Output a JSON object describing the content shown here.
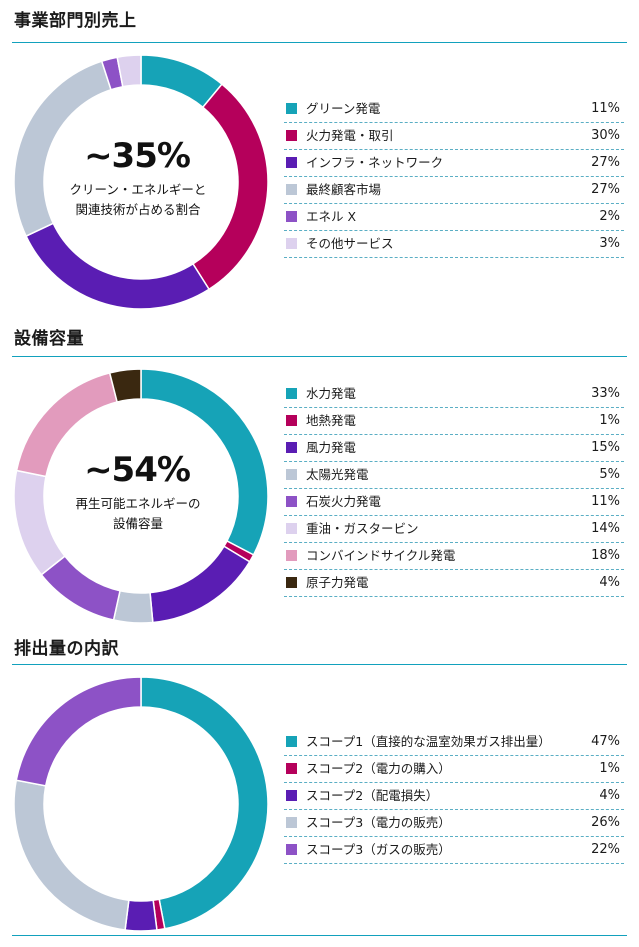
{
  "chart_data": [
    {
      "type": "pie",
      "title": "事業部門別売上",
      "center_value": "~35%",
      "center_label": [
        "クリーン・エネルギーと",
        "関連技術が占める割合"
      ],
      "categories": [
        "グリーン発電",
        "火力発電・取引",
        "インフラ・ネットワーク",
        "最終顧客市場",
        "エネル X",
        "その他サービス"
      ],
      "values": [
        11,
        30,
        27,
        27,
        2,
        3
      ],
      "value_labels": [
        "11%",
        "30%",
        "27%",
        "27%",
        "2%",
        "3%"
      ],
      "colors": [
        "#16a3b7",
        "#b5005b",
        "#5a1db3",
        "#bcc7d6",
        "#8d52c6",
        "#ddd1ee"
      ],
      "unit": "%"
    },
    {
      "type": "pie",
      "title": "設備容量",
      "center_value": "~54%",
      "center_label": [
        "再生可能エネルギーの",
        "設備容量"
      ],
      "categories": [
        "水力発電",
        "地熱発電",
        "風力発電",
        "太陽光発電",
        "石炭火力発電",
        "重油・ガスタービン",
        "コンバインドサイクル発電",
        "原子力発電"
      ],
      "values": [
        33,
        1,
        15,
        5,
        11,
        14,
        18,
        4
      ],
      "value_labels": [
        "33%",
        "1%",
        "15%",
        "5%",
        "11%",
        "14%",
        "18%",
        "4%"
      ],
      "colors": [
        "#16a3b7",
        "#b5005b",
        "#5a1db3",
        "#bcc7d6",
        "#8d52c6",
        "#ddd1ee",
        "#e29bbd",
        "#3a2810"
      ],
      "unit": "%"
    },
    {
      "type": "pie",
      "title": "排出量の内訳",
      "categories": [
        "スコープ1（直接的な温室効果ガス排出量）",
        "スコープ2（電力の購入）",
        "スコープ2（配電損失）",
        "スコープ3（電力の販売）",
        "スコープ3（ガスの販売）"
      ],
      "values": [
        47,
        1,
        4,
        26,
        22
      ],
      "value_labels": [
        "47%",
        "1%",
        "4%",
        "26%",
        "22%"
      ],
      "colors": [
        "#16a3b7",
        "#b5005b",
        "#5a1db3",
        "#bcc7d6",
        "#8d52c6"
      ],
      "unit": "%"
    }
  ]
}
